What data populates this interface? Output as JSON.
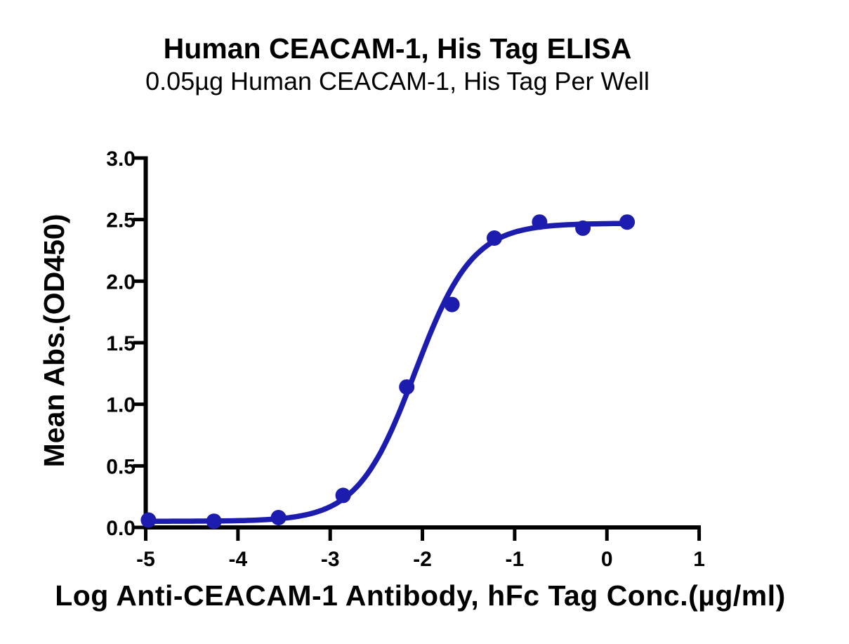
{
  "chart_data": {
    "type": "scatter",
    "title": "Human CEACAM-1, His Tag ELISA",
    "subtitle": "0.05µg Human CEACAM-1, His Tag Per Well",
    "xlabel": "Log Anti-CEACAM-1 Antibody, hFc Tag Conc.(µg/ml)",
    "ylabel": "Mean Abs.(OD450)",
    "xlim": [
      -5,
      1
    ],
    "ylim": [
      0,
      3
    ],
    "x_tick_values": [
      -5,
      -4,
      -3,
      -2,
      -1,
      0,
      1
    ],
    "x_tick_labels": [
      "-5",
      "-4",
      "-3",
      "-2",
      "-1",
      "0",
      "1"
    ],
    "y_tick_values": [
      0,
      0.5,
      1,
      1.5,
      2,
      2.5,
      3
    ],
    "y_tick_labels": [
      "0.0",
      "0.5",
      "1.0",
      "1.5",
      "2.0",
      "2.5",
      "3.0"
    ],
    "grid": false,
    "legend": "none",
    "series": [
      {
        "marker": "circle",
        "color": "#1C1CAE",
        "x": [
          -4.97,
          -4.26,
          -3.56,
          -2.86,
          -2.17,
          -1.68,
          -1.22,
          -0.73,
          -0.26,
          0.22
        ],
        "y": [
          0.06,
          0.05,
          0.08,
          0.26,
          1.14,
          1.81,
          2.35,
          2.48,
          2.43,
          2.48
        ]
      }
    ],
    "fit_curve": {
      "model": "4PL",
      "bottom": 0.05,
      "top": 2.47,
      "log_ec50": -2.08,
      "hill_slope": 1.4,
      "x_start": -4.97,
      "x_end": 0.22
    },
    "colors": {
      "series": "#1C1CAE",
      "axis": "#000000",
      "background": "#FFFFFF"
    }
  }
}
